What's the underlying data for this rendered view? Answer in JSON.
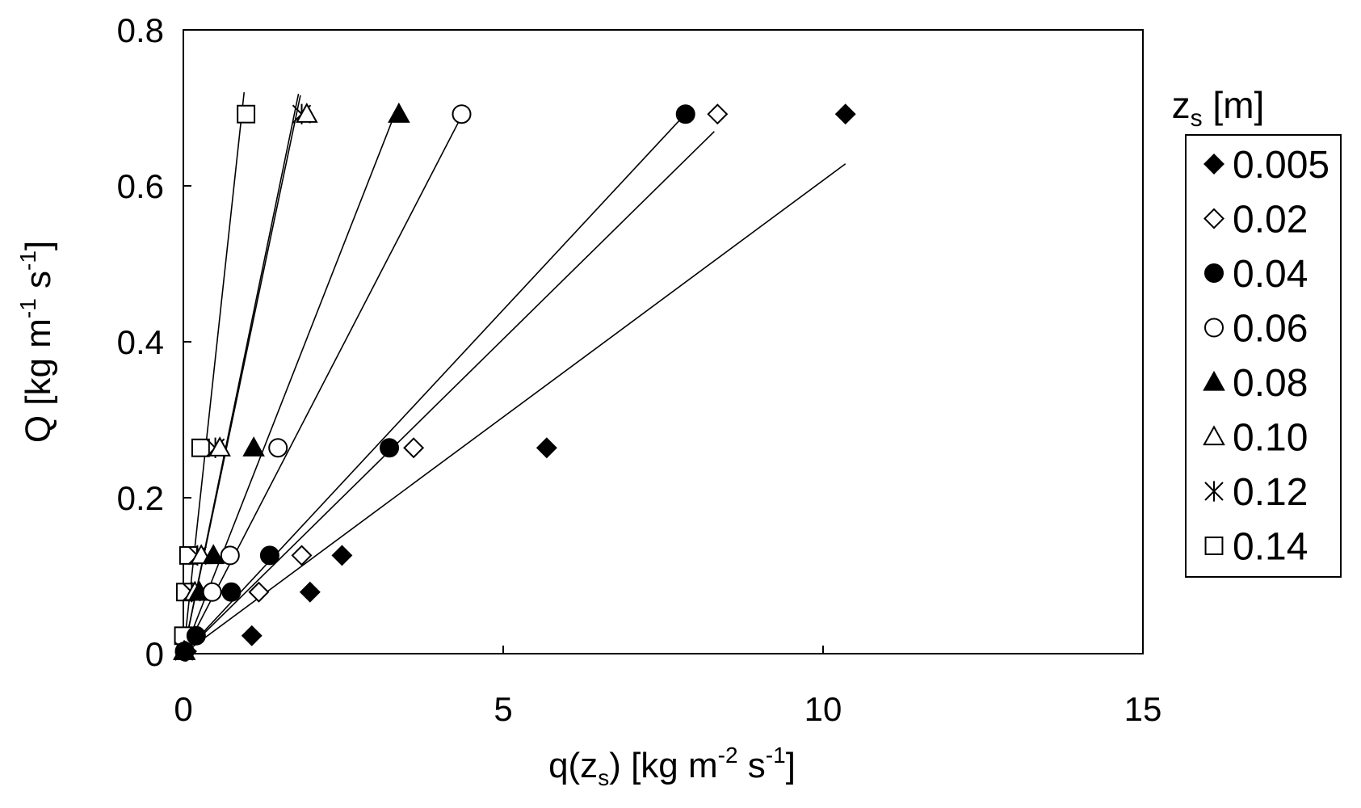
{
  "chart_data": {
    "type": "scatter",
    "xlabel": {
      "pre": "q(z",
      "sub": "s",
      "mid": ") [kg m",
      "sup1": "-2",
      "mid2": " s",
      "sup2": "-1",
      "post": "]"
    },
    "ylabel": {
      "pre": "Q [kg m",
      "sup1": "-1",
      "mid": " s",
      "sup2": "-1",
      "post": "]"
    },
    "xlim": [
      0,
      15
    ],
    "ylim": [
      0,
      0.8
    ],
    "xticks": [
      "0",
      "5",
      "10",
      "15"
    ],
    "yticks": [
      "0",
      "0.2",
      "0.4",
      "0.6",
      "0.8"
    ],
    "legend_title": {
      "pre": "z",
      "sub": "s",
      "post": " [m]"
    },
    "legend_position": "right",
    "grid": false,
    "series": [
      {
        "name": "0.005",
        "marker": "diamond-filled",
        "x": [
          0.05,
          1.07,
          1.98,
          2.48,
          5.68,
          10.35
        ],
        "y": [
          0.003,
          0.023,
          0.079,
          0.126,
          0.264,
          0.692
        ],
        "fit": {
          "x1": 0,
          "x2": 10.35,
          "slope": 0.0607
        }
      },
      {
        "name": "0.02",
        "marker": "diamond-open",
        "x": [
          0.03,
          1.18,
          1.85,
          3.6,
          8.35
        ],
        "y": [
          0.003,
          0.079,
          0.126,
          0.264,
          0.692
        ],
        "fit": {
          "x1": 0,
          "x2": 8.3,
          "slope": 0.0807
        }
      },
      {
        "name": "0.04",
        "marker": "circle-filled",
        "x": [
          0.02,
          0.2,
          0.75,
          1.35,
          3.22,
          7.85
        ],
        "y": [
          0.003,
          0.023,
          0.079,
          0.126,
          0.264,
          0.692
        ],
        "fit": {
          "x1": 0,
          "x2": 7.93,
          "slope": 0.0882
        }
      },
      {
        "name": "0.06",
        "marker": "circle-open",
        "x": [
          0.02,
          0.45,
          0.73,
          1.48,
          4.35
        ],
        "y": [
          0.003,
          0.079,
          0.126,
          0.264,
          0.692
        ],
        "fit": {
          "x1": 0,
          "x2": 4.4,
          "slope": 0.1585
        }
      },
      {
        "name": "0.08",
        "marker": "triangle-filled",
        "x": [
          0.02,
          0.25,
          0.47,
          1.1,
          3.37
        ],
        "y": [
          0.003,
          0.079,
          0.126,
          0.264,
          0.692
        ],
        "fit": {
          "x1": 0,
          "x2": 3.37,
          "slope": 0.2094
        }
      },
      {
        "name": "0.10",
        "marker": "triangle-open",
        "x": [
          0.01,
          0.18,
          0.28,
          0.57,
          1.93
        ],
        "y": [
          0.003,
          0.079,
          0.126,
          0.264,
          0.692
        ],
        "fit": {
          "x1": 0,
          "x2": 1.83,
          "slope": 0.3913
        }
      },
      {
        "name": "0.12",
        "marker": "asterisk",
        "x": [
          0.01,
          0.13,
          0.22,
          0.5,
          1.85
        ],
        "y": [
          0.003,
          0.079,
          0.126,
          0.264,
          0.692
        ],
        "fit": {
          "x1": 0,
          "x2": 1.8,
          "slope": 0.3989
        }
      },
      {
        "name": "0.14",
        "marker": "square-open",
        "x": [
          0.0,
          0.03,
          0.08,
          0.27,
          0.98
        ],
        "y": [
          0.023,
          0.079,
          0.126,
          0.264,
          0.692
        ],
        "fit": {
          "x1": 0,
          "x2": 0.95,
          "slope": 0.7579
        }
      }
    ]
  }
}
